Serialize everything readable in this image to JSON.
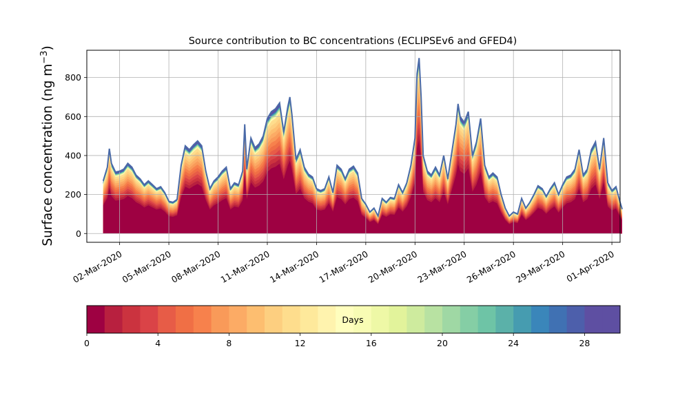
{
  "chart_data": {
    "type": "area",
    "title": "Source contribution to BC concentrations (ECLIPSEv6 and GFED4)",
    "ylabel": "Surface concentration (ng m",
    "ylabel_superscript": "−3",
    "ylabel_close": ")",
    "xlabel": "",
    "x_axis": "date",
    "xlim": [
      "2020-02-29T00:00",
      "2020-04-01T12:00"
    ],
    "ylim": [
      -45,
      940
    ],
    "yticks": [
      0,
      200,
      400,
      600,
      800
    ],
    "xticks": [
      "2020-03-02",
      "2020-03-05",
      "2020-03-08",
      "2020-03-11",
      "2020-03-14",
      "2020-03-17",
      "2020-03-20",
      "2020-03-23",
      "2020-03-26",
      "2020-03-29",
      "2020-04-01"
    ],
    "xtick_labels": [
      "02-Mar-2020",
      "05-Mar-2020",
      "08-Mar-2020",
      "11-Mar-2020",
      "14-Mar-2020",
      "17-Mar-2020",
      "20-Mar-2020",
      "23-Mar-2020",
      "26-Mar-2020",
      "29-Mar-2020",
      "01-Apr-2020"
    ],
    "grid": true,
    "stacking": "cumulative by source age (days), 0 at bottom to 30 at top",
    "total_series": {
      "name": "total",
      "color": "#4a6aa8",
      "points": [
        [
          "2020-03-01T00:00",
          270
        ],
        [
          "2020-03-01T06:00",
          340
        ],
        [
          "2020-03-01T09:00",
          435
        ],
        [
          "2020-03-01T12:00",
          360
        ],
        [
          "2020-03-01T18:00",
          315
        ],
        [
          "2020-03-02T00:00",
          320
        ],
        [
          "2020-03-02T06:00",
          330
        ],
        [
          "2020-03-02T12:00",
          360
        ],
        [
          "2020-03-02T18:00",
          340
        ],
        [
          "2020-03-03T00:00",
          300
        ],
        [
          "2020-03-03T06:00",
          280
        ],
        [
          "2020-03-03T12:00",
          250
        ],
        [
          "2020-03-03T18:00",
          270
        ],
        [
          "2020-03-04T00:00",
          250
        ],
        [
          "2020-03-04T06:00",
          230
        ],
        [
          "2020-03-04T12:00",
          240
        ],
        [
          "2020-03-04T18:00",
          210
        ],
        [
          "2020-03-05T00:00",
          165
        ],
        [
          "2020-03-05T06:00",
          160
        ],
        [
          "2020-03-05T12:00",
          175
        ],
        [
          "2020-03-05T18:00",
          350
        ],
        [
          "2020-03-06T00:00",
          450
        ],
        [
          "2020-03-06T06:00",
          430
        ],
        [
          "2020-03-06T12:00",
          455
        ],
        [
          "2020-03-06T18:00",
          475
        ],
        [
          "2020-03-07T00:00",
          450
        ],
        [
          "2020-03-07T06:00",
          320
        ],
        [
          "2020-03-07T12:00",
          230
        ],
        [
          "2020-03-07T18:00",
          270
        ],
        [
          "2020-03-08T00:00",
          290
        ],
        [
          "2020-03-08T06:00",
          320
        ],
        [
          "2020-03-08T12:00",
          340
        ],
        [
          "2020-03-08T18:00",
          230
        ],
        [
          "2020-03-09T00:00",
          260
        ],
        [
          "2020-03-09T06:00",
          250
        ],
        [
          "2020-03-09T12:00",
          320
        ],
        [
          "2020-03-09T15:00",
          560
        ],
        [
          "2020-03-09T18:00",
          330
        ],
        [
          "2020-03-10T00:00",
          490
        ],
        [
          "2020-03-10T06:00",
          440
        ],
        [
          "2020-03-10T12:00",
          460
        ],
        [
          "2020-03-10T18:00",
          500
        ],
        [
          "2020-03-11T00:00",
          590
        ],
        [
          "2020-03-11T06:00",
          625
        ],
        [
          "2020-03-11T12:00",
          640
        ],
        [
          "2020-03-11T18:00",
          670
        ],
        [
          "2020-03-12T00:00",
          520
        ],
        [
          "2020-03-12T06:00",
          650
        ],
        [
          "2020-03-12T09:00",
          700
        ],
        [
          "2020-03-12T12:00",
          610
        ],
        [
          "2020-03-12T18:00",
          380
        ],
        [
          "2020-03-13T00:00",
          430
        ],
        [
          "2020-03-13T06:00",
          340
        ],
        [
          "2020-03-13T12:00",
          305
        ],
        [
          "2020-03-13T18:00",
          290
        ],
        [
          "2020-03-14T00:00",
          230
        ],
        [
          "2020-03-14T06:00",
          220
        ],
        [
          "2020-03-14T12:00",
          230
        ],
        [
          "2020-03-14T18:00",
          290
        ],
        [
          "2020-03-15T00:00",
          210
        ],
        [
          "2020-03-15T06:00",
          350
        ],
        [
          "2020-03-15T12:00",
          330
        ],
        [
          "2020-03-15T18:00",
          280
        ],
        [
          "2020-03-16T00:00",
          330
        ],
        [
          "2020-03-16T06:00",
          345
        ],
        [
          "2020-03-16T12:00",
          310
        ],
        [
          "2020-03-16T18:00",
          180
        ],
        [
          "2020-03-17T00:00",
          150
        ],
        [
          "2020-03-17T06:00",
          110
        ],
        [
          "2020-03-17T12:00",
          130
        ],
        [
          "2020-03-17T18:00",
          90
        ],
        [
          "2020-03-18T00:00",
          180
        ],
        [
          "2020-03-18T06:00",
          160
        ],
        [
          "2020-03-18T12:00",
          185
        ],
        [
          "2020-03-18T18:00",
          180
        ],
        [
          "2020-03-19T00:00",
          250
        ],
        [
          "2020-03-19T06:00",
          210
        ],
        [
          "2020-03-19T12:00",
          260
        ],
        [
          "2020-03-19T18:00",
          350
        ],
        [
          "2020-03-20T00:00",
          490
        ],
        [
          "2020-03-20T03:00",
          820
        ],
        [
          "2020-03-20T06:00",
          900
        ],
        [
          "2020-03-20T09:00",
          700
        ],
        [
          "2020-03-20T12:00",
          400
        ],
        [
          "2020-03-20T18:00",
          320
        ],
        [
          "2020-03-21T00:00",
          300
        ],
        [
          "2020-03-21T06:00",
          340
        ],
        [
          "2020-03-21T12:00",
          300
        ],
        [
          "2020-03-21T18:00",
          400
        ],
        [
          "2020-03-22T00:00",
          280
        ],
        [
          "2020-03-22T06:00",
          420
        ],
        [
          "2020-03-22T12:00",
          560
        ],
        [
          "2020-03-22T15:00",
          665
        ],
        [
          "2020-03-22T18:00",
          600
        ],
        [
          "2020-03-23T00:00",
          570
        ],
        [
          "2020-03-23T06:00",
          625
        ],
        [
          "2020-03-23T12:00",
          400
        ],
        [
          "2020-03-23T18:00",
          470
        ],
        [
          "2020-03-24T00:00",
          590
        ],
        [
          "2020-03-24T06:00",
          350
        ],
        [
          "2020-03-24T12:00",
          290
        ],
        [
          "2020-03-24T18:00",
          310
        ],
        [
          "2020-03-25T00:00",
          290
        ],
        [
          "2020-03-25T06:00",
          200
        ],
        [
          "2020-03-25T12:00",
          130
        ],
        [
          "2020-03-25T18:00",
          90
        ],
        [
          "2020-03-26T00:00",
          110
        ],
        [
          "2020-03-26T06:00",
          100
        ],
        [
          "2020-03-26T12:00",
          180
        ],
        [
          "2020-03-26T18:00",
          130
        ],
        [
          "2020-03-27T00:00",
          160
        ],
        [
          "2020-03-27T06:00",
          200
        ],
        [
          "2020-03-27T12:00",
          245
        ],
        [
          "2020-03-27T18:00",
          230
        ],
        [
          "2020-03-28T00:00",
          190
        ],
        [
          "2020-03-28T06:00",
          230
        ],
        [
          "2020-03-28T12:00",
          260
        ],
        [
          "2020-03-28T18:00",
          200
        ],
        [
          "2020-03-29T00:00",
          250
        ],
        [
          "2020-03-29T06:00",
          290
        ],
        [
          "2020-03-29T12:00",
          300
        ],
        [
          "2020-03-29T18:00",
          330
        ],
        [
          "2020-03-30T00:00",
          430
        ],
        [
          "2020-03-30T06:00",
          300
        ],
        [
          "2020-03-30T12:00",
          330
        ],
        [
          "2020-03-30T18:00",
          430
        ],
        [
          "2020-03-31T00:00",
          470
        ],
        [
          "2020-03-31T06:00",
          330
        ],
        [
          "2020-03-31T12:00",
          490
        ],
        [
          "2020-03-31T18:00",
          260
        ],
        [
          "2020-04-01T00:00",
          220
        ],
        [
          "2020-04-01T06:00",
          240
        ],
        [
          "2020-04-01T12:00",
          160
        ],
        [
          "2020-04-01T15:00",
          125
        ]
      ]
    },
    "colorbar": {
      "label": "Days",
      "min": 0,
      "max": 30,
      "ticks": [
        0,
        4,
        8,
        12,
        16,
        20,
        24,
        28
      ],
      "colors": [
        "#9e0142",
        "#b8203f",
        "#cb333f",
        "#da4347",
        "#e75c47",
        "#f06f45",
        "#f7814c",
        "#f99a59",
        "#fcab65",
        "#fdbe70",
        "#fdcf80",
        "#fedd8d",
        "#fee99b",
        "#fff3ae",
        "#fffebe",
        "#f8fcb4",
        "#eef8a6",
        "#e2f39b",
        "#ceeb9e",
        "#b8e2a2",
        "#9fd8a4",
        "#85cea5",
        "#6ec4a6",
        "#5bb1a9",
        "#469cb0",
        "#3a86ba",
        "#4071b3",
        "#4d5fab",
        "#5e4fa2",
        "#5e4fa2"
      ]
    }
  }
}
